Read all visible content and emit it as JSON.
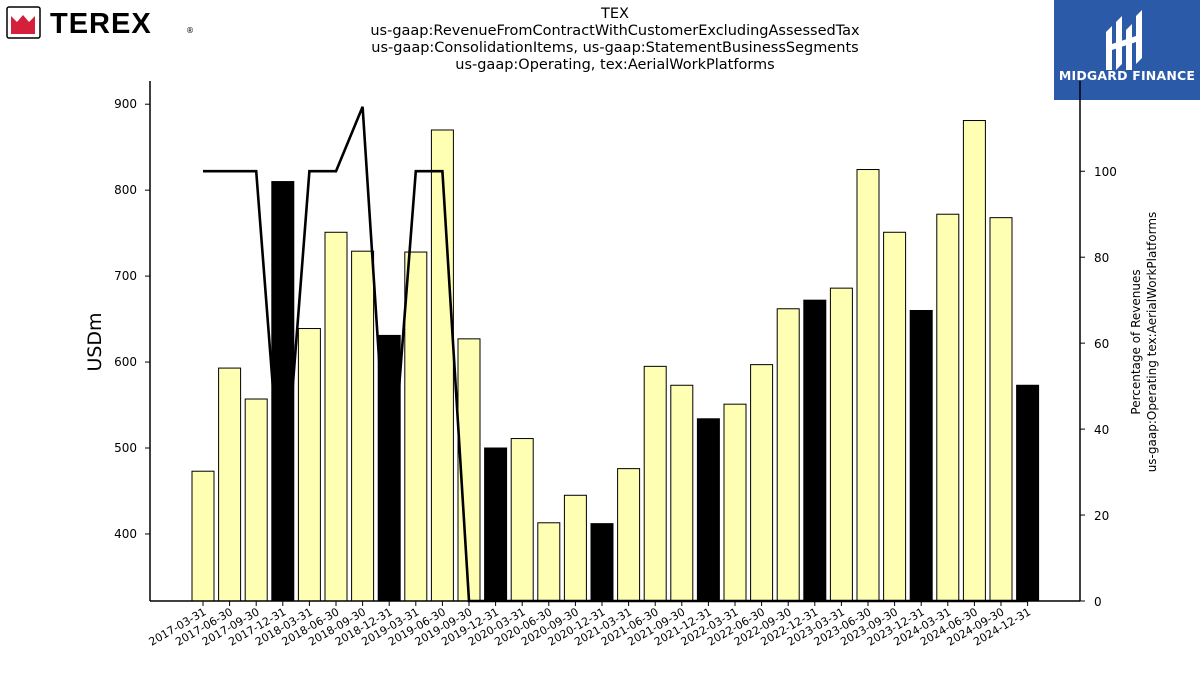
{
  "header": {
    "brand_left": "TEREX",
    "brand_right": "MIDGARD FINANCE",
    "title_lines": [
      "TEX",
      "us-gaap:RevenueFromContractWithCustomerExcludingAssessedTax",
      "us-gaap:ConsolidationItems, us-gaap:StatementBusinessSegments",
      "us-gaap:Operating, tex:AerialWorkPlatforms"
    ]
  },
  "colors": {
    "bar_quarter": "#ffffb3",
    "bar_year_end": "#000000",
    "line": "#000000",
    "brand_right_bg": "#2b5aa8",
    "brand_left_red": "#d4203a"
  },
  "chart_data": {
    "type": "bar",
    "ylabel": "USDm",
    "y2label_lines": [
      "Percentage of Revenues",
      "us-gaap:Operating tex:AerialWorkPlatforms"
    ],
    "ylim": [
      322,
      927
    ],
    "y2lim": [
      0,
      121
    ],
    "yticks": [
      400,
      500,
      600,
      700,
      800,
      900
    ],
    "y2ticks": [
      0,
      20,
      40,
      60,
      80,
      100
    ],
    "categories": [
      "2017-03-31",
      "2017-06-30",
      "2017-09-30",
      "2017-12-31",
      "2018-03-31",
      "2018-06-30",
      "2018-09-30",
      "2018-12-31",
      "2019-03-31",
      "2019-06-30",
      "2019-09-30",
      "2019-12-31",
      "2020-03-31",
      "2020-06-30",
      "2020-09-30",
      "2020-12-31",
      "2021-03-31",
      "2021-06-30",
      "2021-09-30",
      "2021-12-31",
      "2022-03-31",
      "2022-06-30",
      "2022-09-30",
      "2022-12-31",
      "2023-03-31",
      "2023-06-30",
      "2023-09-30",
      "2023-12-31",
      "2024-03-31",
      "2024-06-30",
      "2024-09-30",
      "2024-12-31"
    ],
    "series": [
      {
        "type": "bar",
        "values": [
          473,
          593,
          557,
          810,
          639,
          751,
          729,
          631,
          728,
          870,
          627,
          500,
          511,
          413,
          445,
          412,
          476,
          595,
          573,
          534,
          551,
          597,
          662,
          672,
          686,
          824,
          751,
          660,
          772,
          881,
          768,
          573
        ],
        "year_end": [
          false,
          false,
          false,
          true,
          false,
          false,
          false,
          true,
          false,
          false,
          false,
          true,
          false,
          false,
          false,
          true,
          false,
          false,
          false,
          true,
          false,
          false,
          false,
          true,
          false,
          false,
          false,
          true,
          false,
          false,
          false,
          true
        ]
      },
      {
        "type": "line",
        "axis": "right",
        "values": [
          100,
          100,
          100,
          20,
          100,
          100,
          115,
          20,
          100,
          100,
          0,
          0,
          0,
          0,
          0,
          0,
          0,
          0,
          0,
          0,
          0,
          0,
          0,
          0,
          0,
          0,
          0,
          0,
          0,
          0,
          0,
          0
        ]
      }
    ]
  }
}
